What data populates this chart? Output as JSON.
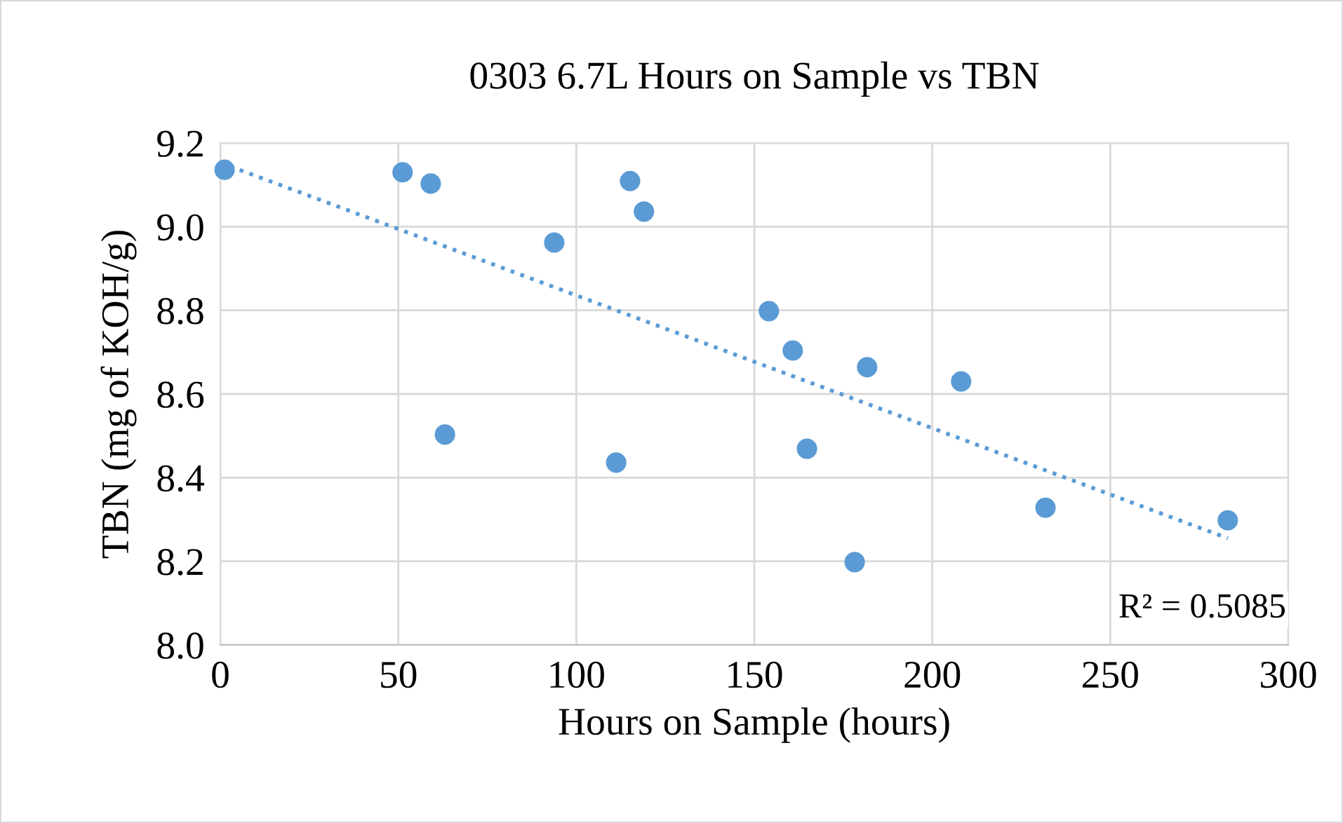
{
  "chart_data": {
    "type": "scatter",
    "title": "0303 6.7L Hours on Sample vs TBN",
    "xlabel": "Hours on Sample (hours)",
    "ylabel": "TBN (mg of KOH/g)",
    "series": [
      {
        "color": "#5b9bd5",
        "marker": "circle",
        "x": [
          1.2,
          51.2,
          59.1,
          63.1,
          93.8,
          115.1,
          119.0,
          111.2,
          154.1,
          160.8,
          164.8,
          178.2,
          181.7,
          208.1,
          231.8,
          283.0
        ],
        "values": [
          9.136,
          9.13,
          9.103,
          8.503,
          8.962,
          9.109,
          9.036,
          8.436,
          8.798,
          8.704,
          8.469,
          8.198,
          8.664,
          8.63,
          8.328,
          8.298
        ]
      },
      {
        "type": "line",
        "color": "#5b9bd5",
        "line_style": "dotted",
        "marker": "none",
        "x": [
          0,
          283.0
        ],
        "values": [
          9.153,
          8.255
        ]
      }
    ],
    "annotations": [
      "R² = 0.5085"
    ],
    "xlim": [
      0,
      300
    ],
    "xticks": [
      0,
      50,
      100,
      150,
      200,
      250,
      300
    ],
    "ylim": [
      8.0,
      9.2
    ],
    "yticks": [
      {
        "value": 8.0,
        "label": "8.0"
      },
      {
        "value": 8.2,
        "label": "8.2"
      },
      {
        "value": 8.4,
        "label": "8.4"
      },
      {
        "value": 8.6,
        "label": "8.6"
      },
      {
        "value": 8.8,
        "label": "8.8"
      },
      {
        "value": 9.0,
        "label": "9.0"
      },
      {
        "value": 9.2,
        "label": "9.2"
      }
    ],
    "grid": true,
    "legend": false
  }
}
